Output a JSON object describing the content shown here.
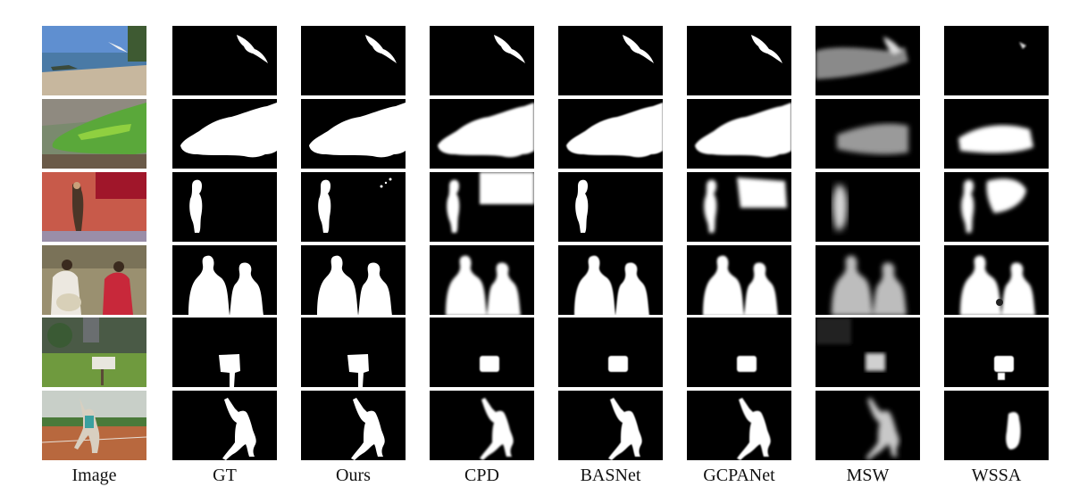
{
  "figure": {
    "columns": [
      {
        "key": "image",
        "label": "Image"
      },
      {
        "key": "gt",
        "label": "GT"
      },
      {
        "key": "ours",
        "label": "Ours"
      },
      {
        "key": "cpd",
        "label": "CPD"
      },
      {
        "key": "basnet",
        "label": "BASNet"
      },
      {
        "key": "gcpanet",
        "label": "GCPANet"
      },
      {
        "key": "msw",
        "label": "MSW"
      },
      {
        "key": "wssa",
        "label": "WSSA"
      }
    ],
    "rows": [
      {
        "subject": "seagull"
      },
      {
        "subject": "iguana"
      },
      {
        "subject": "woman-by-red-wall"
      },
      {
        "subject": "two-men"
      },
      {
        "subject": "sign-board"
      },
      {
        "subject": "sprinter-pose"
      }
    ],
    "colors": {
      "mask_fg": "#ffffff",
      "mask_bg": "#000000"
    }
  }
}
